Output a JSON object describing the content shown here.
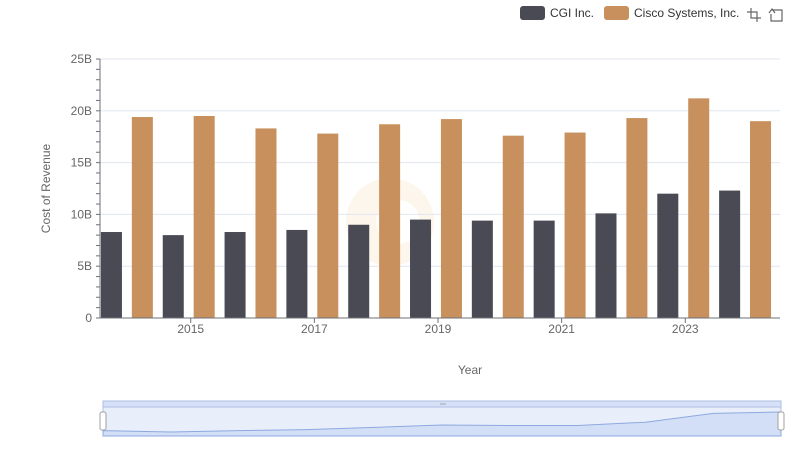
{
  "legend": {
    "series0": "CGI Inc.",
    "series1": "Cisco Systems, Inc."
  },
  "toolbox": [
    "zoom-icon",
    "restore-icon"
  ],
  "colors": {
    "series0": "#4a4a55",
    "series1": "#c8905c",
    "axis": "#6e7079",
    "grid": "#e0e6f1",
    "slider_fill": "#d6e1f7",
    "slider_border": "#aebee6"
  },
  "chart_data": {
    "type": "bar",
    "xlabel": "Year",
    "ylabel": "Cost of Revenue",
    "ylim": [
      0,
      25000000000
    ],
    "yticks": [
      "0",
      "5B",
      "10B",
      "15B",
      "20B",
      "25B"
    ],
    "categories": [
      "2014",
      "2015",
      "2016",
      "2017",
      "2018",
      "2019",
      "2020",
      "2021",
      "2022",
      "2023",
      "2024"
    ],
    "xtick_labels": [
      "2015",
      "2017",
      "2019",
      "2021",
      "2023"
    ],
    "grid": true,
    "legend_position": "top-right",
    "series": [
      {
        "name": "CGI Inc.",
        "values": [
          8300000000,
          8000000000,
          8300000000,
          8500000000,
          9000000000,
          9500000000,
          9400000000,
          9400000000,
          10100000000,
          12000000000,
          12300000000
        ]
      },
      {
        "name": "Cisco Systems, Inc.",
        "values": [
          19400000000,
          19500000000,
          18300000000,
          17800000000,
          18700000000,
          19200000000,
          17600000000,
          17900000000,
          19300000000,
          21200000000,
          19000000000
        ]
      }
    ]
  }
}
